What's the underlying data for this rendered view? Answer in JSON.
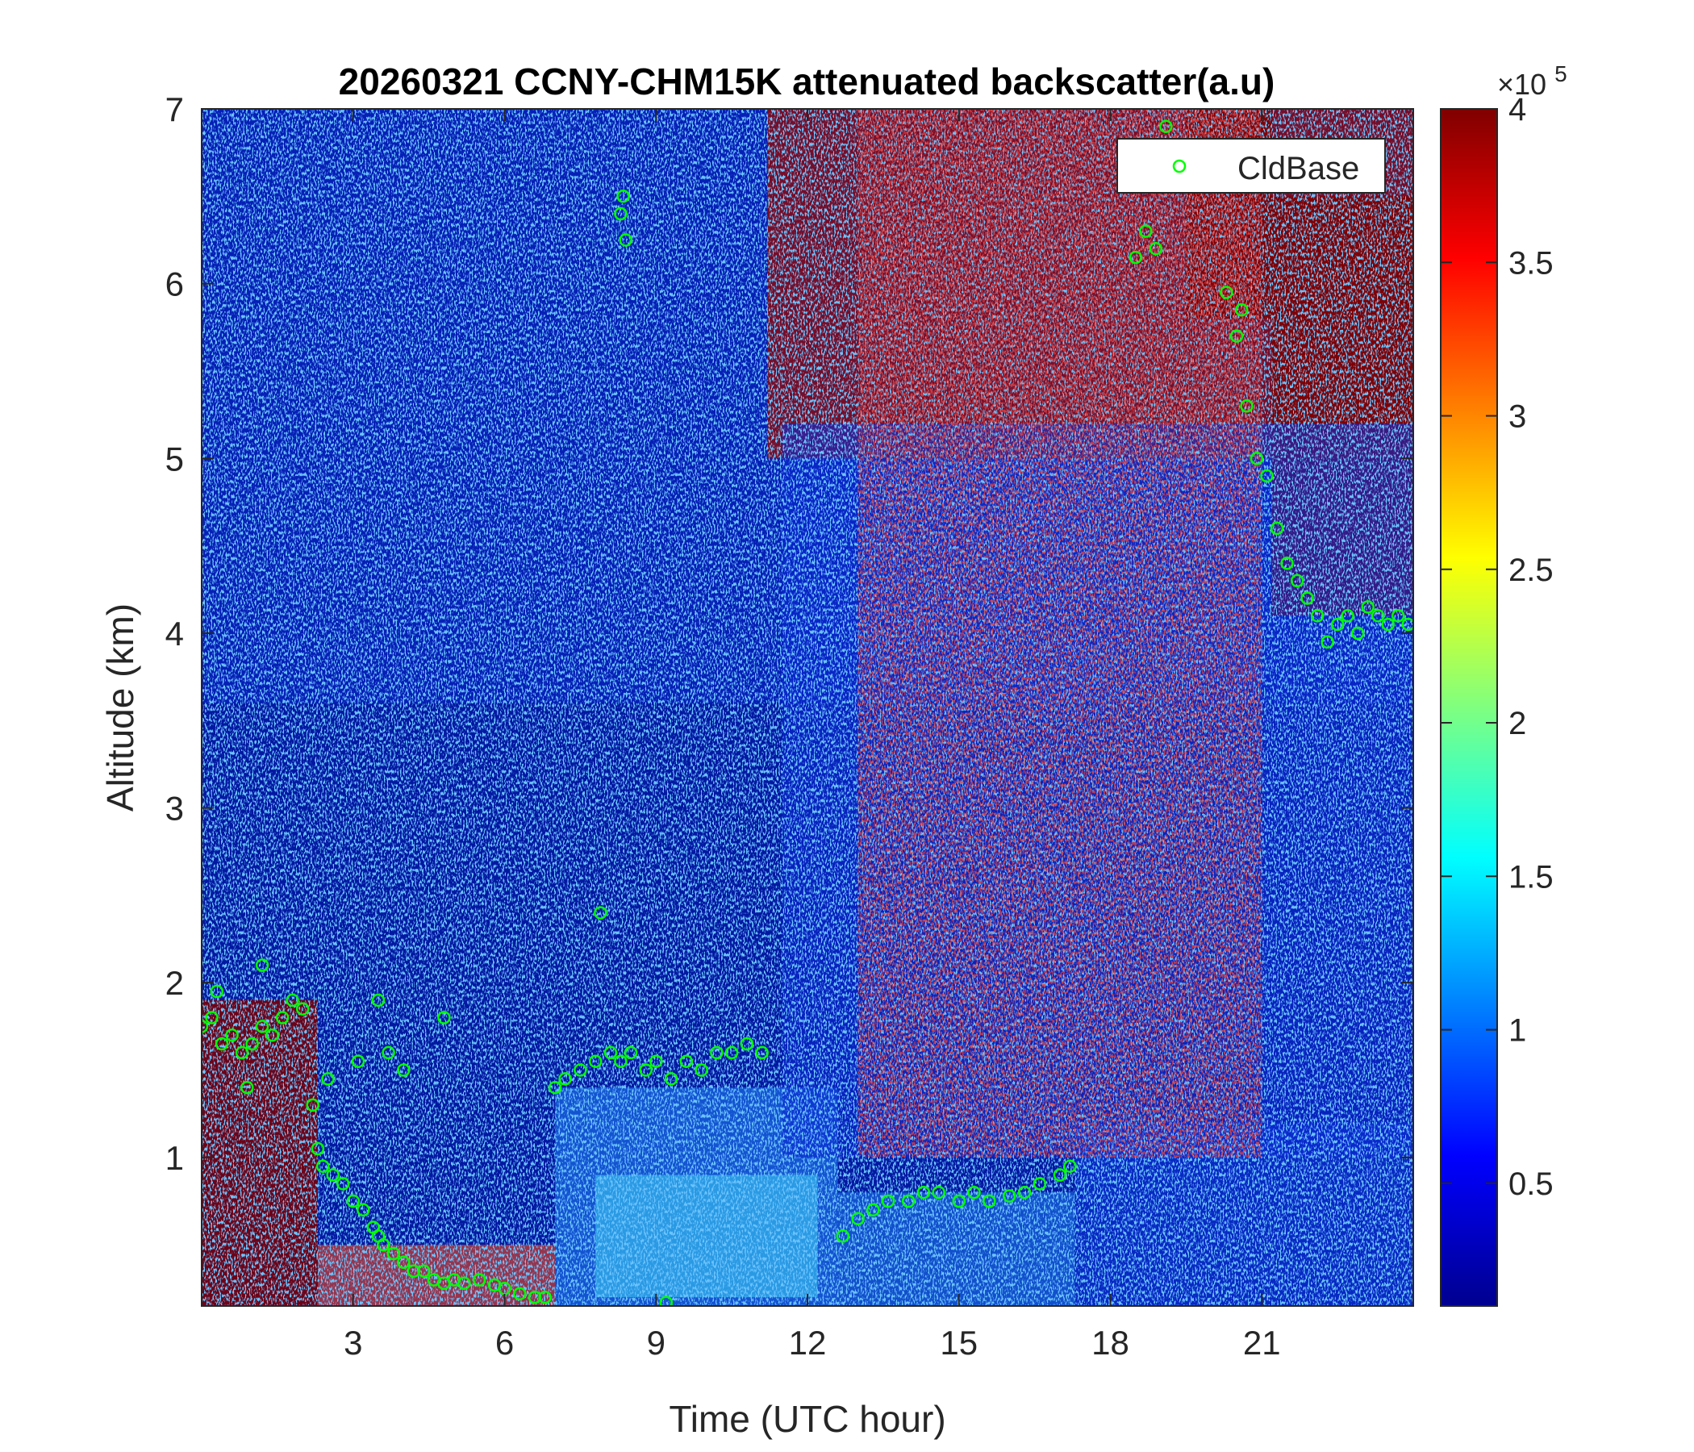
{
  "chart_data": {
    "type": "heatmap",
    "title": "20260321 CCNY-CHM15K attenuated backscatter(a.u)",
    "xlabel": "Time (UTC hour)",
    "ylabel": "Altitude (km)",
    "xlim": [
      0,
      24
    ],
    "ylim": [
      0.15,
      7
    ],
    "x_ticks": [
      3,
      6,
      9,
      12,
      15,
      18,
      21
    ],
    "y_ticks": [
      1,
      2,
      3,
      4,
      5,
      6,
      7
    ],
    "colorbar": {
      "colormap": "jet",
      "clim": [
        0.1,
        4
      ],
      "ticks": [
        0.5,
        1,
        1.5,
        2,
        2.5,
        3,
        3.5,
        4
      ],
      "exponent_base": "×10",
      "exponent_power": "5"
    },
    "legend": {
      "position": "top-right",
      "entries": [
        "CldBase"
      ]
    },
    "series": [
      {
        "name": "CldBase",
        "marker": "open-circle",
        "color": "#00ff00",
        "x": [
          0.0,
          0.2,
          0.4,
          0.6,
          0.8,
          1.0,
          1.2,
          1.4,
          1.6,
          1.8,
          2.0,
          2.2,
          2.3,
          2.4,
          2.6,
          2.8,
          3.0,
          3.2,
          3.4,
          3.5,
          3.6,
          3.8,
          4.0,
          4.2,
          4.4,
          4.6,
          4.8,
          5.0,
          5.2,
          5.5,
          5.8,
          6.0,
          6.3,
          6.6,
          6.8,
          7.0,
          7.2,
          7.5,
          7.8,
          7.9,
          8.1,
          8.3,
          8.5,
          8.8,
          9.0,
          9.3,
          9.6,
          9.9,
          10.2,
          10.5,
          10.8,
          11.1,
          12.7,
          13.0,
          13.3,
          13.6,
          14.0,
          14.3,
          14.6,
          15.0,
          15.3,
          15.6,
          16.0,
          16.3,
          16.6,
          17.0,
          17.2,
          18.5,
          18.7,
          18.9,
          20.3,
          20.5,
          20.7,
          20.9,
          21.1,
          21.3,
          21.5,
          21.7,
          21.9,
          22.1,
          22.3,
          22.5,
          22.7,
          22.9,
          23.1,
          23.3,
          23.5,
          23.7,
          23.9
        ],
        "y": [
          1.75,
          1.8,
          1.65,
          1.7,
          1.6,
          1.65,
          1.75,
          1.7,
          1.8,
          1.9,
          1.85,
          1.3,
          1.05,
          0.95,
          0.9,
          0.85,
          0.75,
          0.7,
          0.6,
          0.55,
          0.5,
          0.45,
          0.4,
          0.35,
          0.35,
          0.3,
          0.28,
          0.3,
          0.28,
          0.3,
          0.27,
          0.25,
          0.22,
          0.2,
          0.2,
          1.4,
          1.45,
          1.5,
          1.55,
          2.4,
          1.6,
          1.55,
          1.6,
          1.5,
          1.55,
          1.45,
          1.55,
          1.5,
          1.6,
          1.6,
          1.65,
          1.6,
          0.55,
          0.65,
          0.7,
          0.75,
          0.75,
          0.8,
          0.8,
          0.75,
          0.8,
          0.75,
          0.78,
          0.8,
          0.85,
          0.9,
          0.95,
          6.15,
          6.3,
          6.2,
          5.95,
          5.7,
          5.3,
          5.0,
          4.9,
          4.6,
          4.4,
          4.3,
          4.2,
          4.1,
          3.95,
          4.05,
          4.1,
          4.0,
          4.15,
          4.1,
          4.05,
          4.1,
          4.05
        ]
      },
      {
        "name": "",
        "marker": "open-circle",
        "color": "#00ff00",
        "x": [
          0.3,
          0.9,
          1.2,
          2.5,
          3.1,
          3.5,
          3.7,
          4.0,
          4.8,
          8.3,
          8.4,
          8.35,
          9.2,
          19.1,
          20.6
        ],
        "y": [
          1.95,
          1.4,
          2.1,
          1.45,
          1.55,
          1.9,
          1.6,
          1.5,
          1.8,
          6.4,
          6.25,
          6.5,
          0.17,
          6.9,
          5.85
        ]
      }
    ]
  }
}
